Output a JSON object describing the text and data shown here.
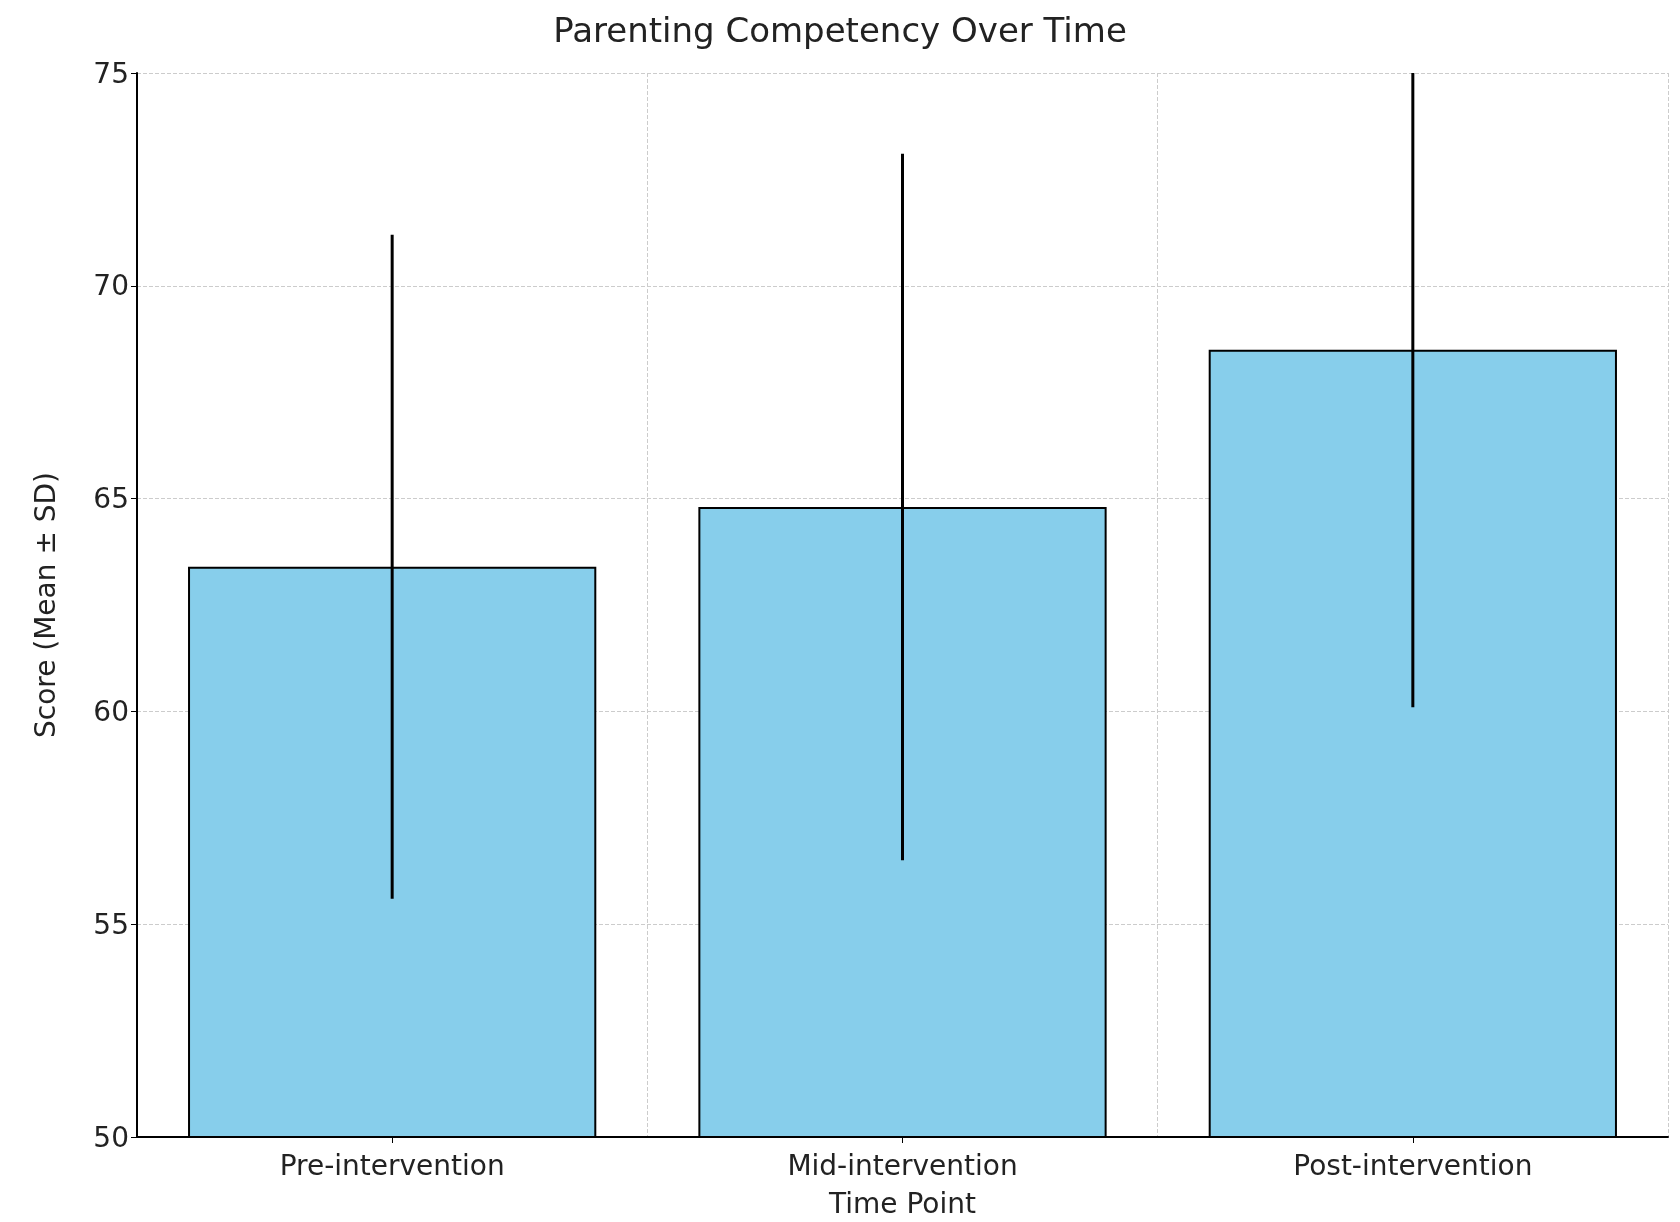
{
  "chart_data": {
    "type": "bar",
    "title": "Parenting Competency Over Time",
    "xlabel": "Time Point",
    "ylabel": "Score (Mean ± SD)",
    "categories": [
      "Pre-intervention",
      "Mid-intervention",
      "Post-intervention"
    ],
    "values": [
      63.4,
      64.8,
      68.5
    ],
    "errors": [
      7.8,
      8.3,
      [
        60.1,
        75
      ]
    ],
    "color": "#87ceeb",
    "ylim": [
      50,
      75
    ],
    "yticks": [
      50,
      55,
      60,
      65,
      70,
      75
    ],
    "grid": true
  }
}
